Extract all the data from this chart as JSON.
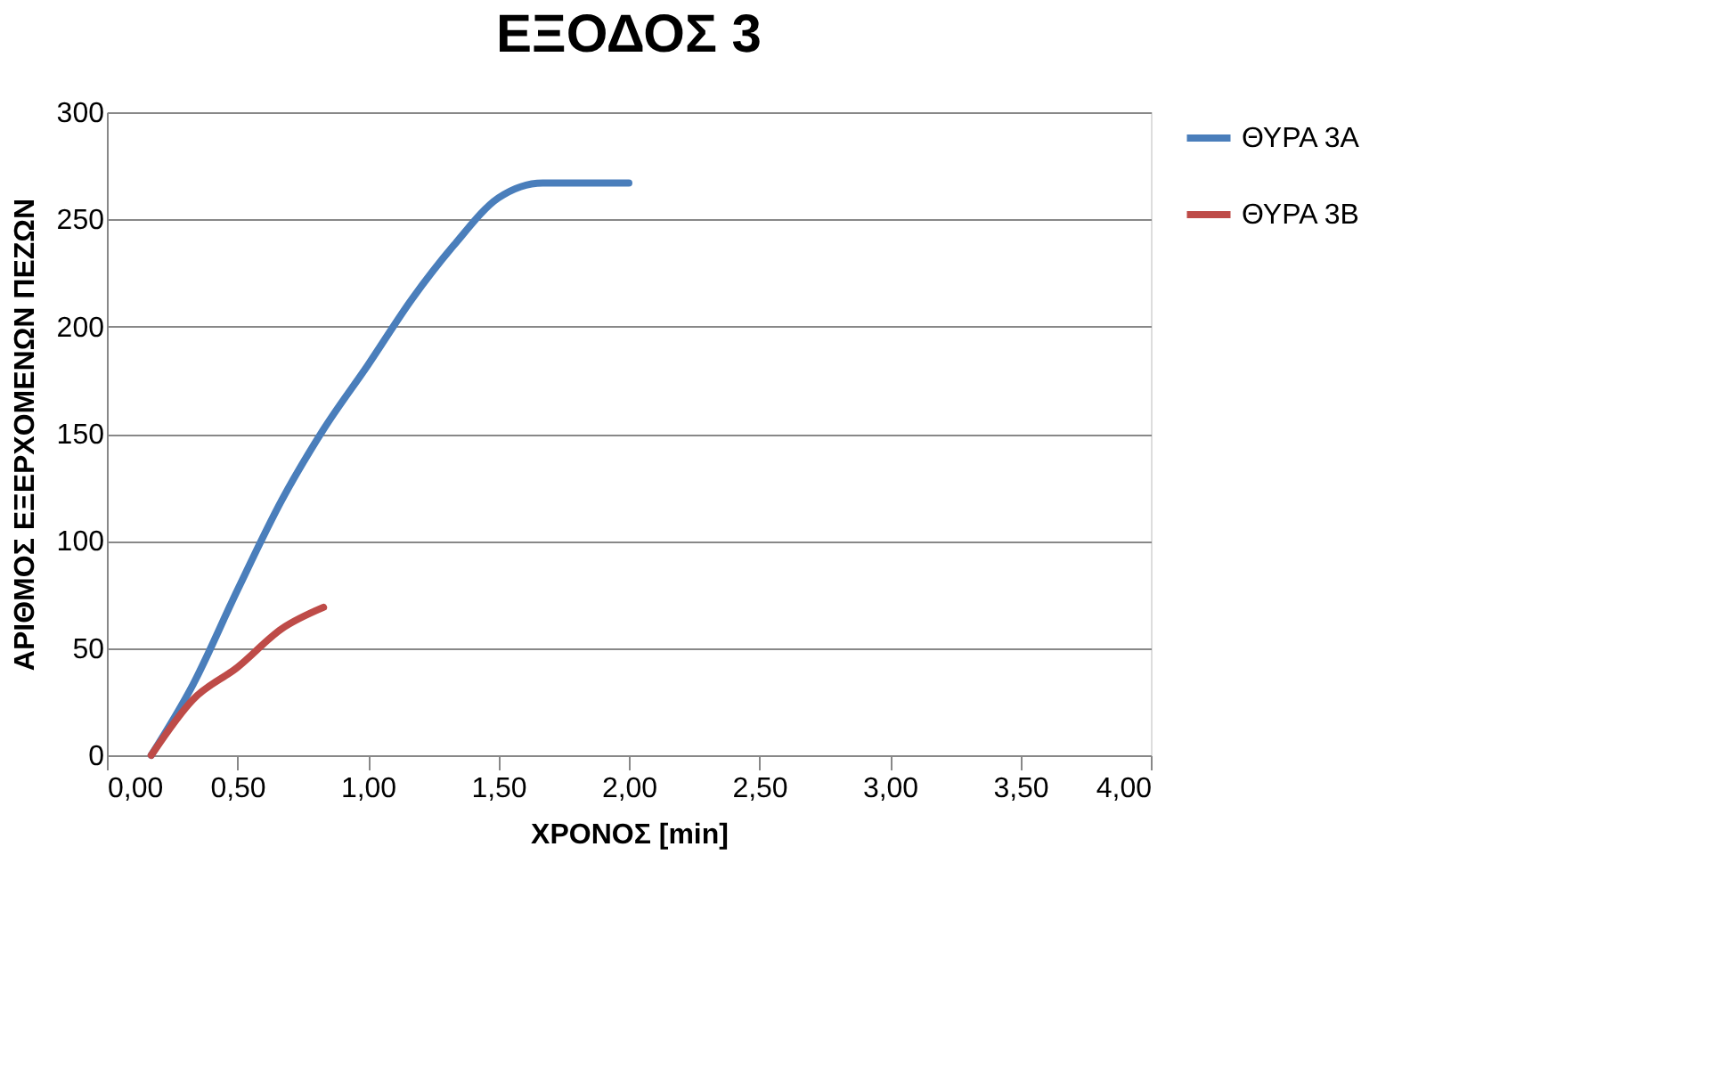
{
  "chart_data": {
    "type": "line",
    "title": "ΕΞΟΔΟΣ 3",
    "xlabel": "ΧΡΟΝΟΣ [min]",
    "ylabel": "ΑΡΙΘΜΟΣ ΕΞΕΡΧΟΜΕΝΩΝ ΠΕΖΩΝ",
    "x": [
      0.17,
      0.33,
      0.5,
      0.67,
      0.83,
      1.0,
      1.17,
      1.33,
      1.5,
      1.67,
      1.83,
      2.0
    ],
    "series": [
      {
        "name": "ΘΥΡΑ 3Α",
        "color": "#4a7ebb",
        "values": [
          0,
          33,
          77,
          119,
          152,
          182,
          213,
          238,
          260,
          267,
          267,
          267
        ]
      },
      {
        "name": "ΘΥΡΑ 3Β",
        "color": "#be4b48",
        "x": [
          0.17,
          0.33,
          0.5,
          0.67,
          0.83
        ],
        "values": [
          0,
          26,
          41,
          59,
          69
        ]
      }
    ],
    "xlim": [
      0,
      4
    ],
    "xticks": [
      {
        "value": 0,
        "label": "0,00"
      },
      {
        "value": 0.5,
        "label": "0,50"
      },
      {
        "value": 1,
        "label": "1,00"
      },
      {
        "value": 1.5,
        "label": "1,50"
      },
      {
        "value": 2,
        "label": "2,00"
      },
      {
        "value": 2.5,
        "label": "2,50"
      },
      {
        "value": 3,
        "label": "3,00"
      },
      {
        "value": 3.5,
        "label": "3,50"
      },
      {
        "value": 4,
        "label": "4,00"
      }
    ],
    "ylim": [
      0,
      300
    ],
    "yticks": [
      0,
      50,
      100,
      150,
      200,
      250,
      300
    ],
    "grid": "y",
    "legend": "right",
    "marker": "none",
    "line_style": "solid"
  }
}
